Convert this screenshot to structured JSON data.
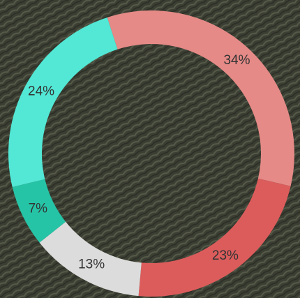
{
  "chart_data": {
    "type": "donut",
    "values": [
      34,
      23,
      13,
      7,
      24
    ],
    "value_labels": [
      "34%",
      "23%",
      "13%",
      "7%",
      "24%"
    ],
    "colors": [
      "#e58a87",
      "#dc5c5c",
      "#dcdcdc",
      "#26c4a6",
      "#52e8d5"
    ]
  }
}
